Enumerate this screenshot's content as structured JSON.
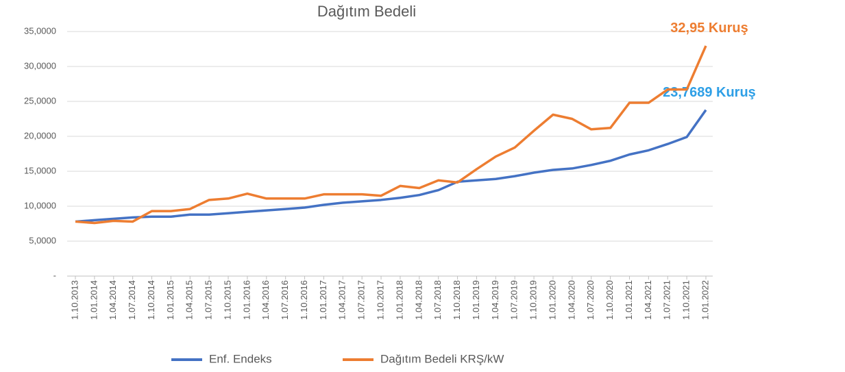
{
  "chart_data": {
    "type": "line",
    "title": "Dağıtım Bedeli",
    "categories": [
      "1.10.2013",
      "1.01.2014",
      "1.04.2014",
      "1.07.2014",
      "1.10.2014",
      "1.01.2015",
      "1.04.2015",
      "1.07.2015",
      "1.10.2015",
      "1.01.2016",
      "1.04.2016",
      "1.07.2016",
      "1.10.2016",
      "1.01.2017",
      "1.04.2017",
      "1.07.2017",
      "1.10.2017",
      "1.01.2018",
      "1.04.2018",
      "1.07.2018",
      "1.10.2018",
      "1.01.2019",
      "1.04.2019",
      "1.07.2019",
      "1.10.2019",
      "1.01.2020",
      "1.04.2020",
      "1.07.2020",
      "1.10.2020",
      "1.01.2021",
      "1.04.2021",
      "1.07.2021",
      "1.10.2021",
      "1.01.2022"
    ],
    "series": [
      {
        "name": "Enf. Endeks",
        "color": "#4472c4",
        "label_color": "#2e9fe6",
        "values": [
          7.8,
          8.0,
          8.2,
          8.4,
          8.5,
          8.5,
          8.8,
          8.8,
          9.0,
          9.2,
          9.4,
          9.6,
          9.8,
          10.2,
          10.5,
          10.7,
          10.9,
          11.2,
          11.6,
          12.3,
          13.5,
          13.7,
          13.9,
          14.3,
          14.8,
          15.2,
          15.4,
          15.9,
          16.5,
          17.4,
          18.0,
          18.9,
          19.9,
          23.7689
        ],
        "value_labels": [
          null,
          null,
          null,
          null,
          null,
          null,
          null,
          null,
          null,
          null,
          null,
          null,
          null,
          null,
          null,
          null,
          null,
          null,
          null,
          null,
          null,
          null,
          null,
          null,
          null,
          null,
          null,
          null,
          null,
          null,
          null,
          null,
          null,
          "23,7689 Kuruş"
        ]
      },
      {
        "name": "Dağıtım Bedeli KRŞ/kW",
        "color": "#ed7d31",
        "label_color": "#ed7d31",
        "values": [
          7.8,
          7.6,
          7.9,
          7.8,
          9.3,
          9.3,
          9.6,
          10.9,
          11.1,
          11.8,
          11.1,
          11.1,
          11.1,
          11.7,
          11.7,
          11.7,
          11.5,
          12.9,
          12.6,
          13.7,
          13.4,
          15.3,
          17.1,
          18.4,
          20.8,
          23.1,
          22.5,
          21.0,
          21.2,
          24.8,
          24.8,
          26.7,
          26.7,
          32.95
        ],
        "value_labels": [
          null,
          null,
          null,
          null,
          null,
          null,
          null,
          null,
          null,
          null,
          null,
          null,
          null,
          null,
          null,
          null,
          null,
          null,
          null,
          null,
          null,
          null,
          null,
          null,
          null,
          null,
          null,
          null,
          null,
          null,
          null,
          null,
          null,
          "32,95 Kuruş"
        ]
      }
    ],
    "ylim": [
      0,
      35
    ],
    "yticks": [
      {
        "value": 0,
        "label": "-"
      },
      {
        "value": 5,
        "label": "5,0000"
      },
      {
        "value": 10,
        "label": "10,0000"
      },
      {
        "value": 15,
        "label": "15,0000"
      },
      {
        "value": 20,
        "label": "20,0000"
      },
      {
        "value": 25,
        "label": "25,0000"
      },
      {
        "value": 30,
        "label": "30,0000"
      },
      {
        "value": 35,
        "label": "35,0000"
      }
    ],
    "grid": true,
    "legend": "bottom"
  }
}
